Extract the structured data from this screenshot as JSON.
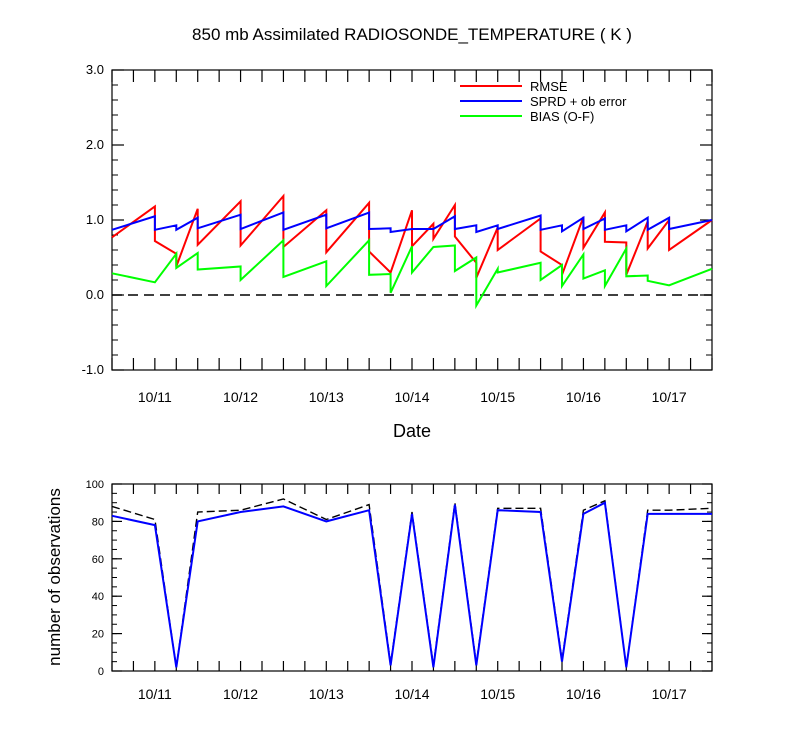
{
  "chart_data": [
    {
      "type": "line",
      "title": "850 mb Assimilated RADIOSONDE_TEMPERATURE ( K )",
      "xlabel": "Date",
      "ylabel": "",
      "ylim": [
        -1.0,
        3.0
      ],
      "yticks": [
        -1.0,
        0.0,
        1.0,
        2.0,
        3.0
      ],
      "ytick_labels": [
        "-1.0",
        "0.0",
        "1.0",
        "2.0",
        "3.0"
      ],
      "xlim": [
        0,
        14
      ],
      "xticks": [
        1,
        3,
        5,
        7,
        9,
        11,
        13
      ],
      "xtick_labels": [
        "10/11",
        "10/12",
        "10/13",
        "10/14",
        "10/15",
        "10/16",
        "10/17"
      ],
      "reference_line": {
        "y": 0.0,
        "style": "dashed"
      },
      "grid": false,
      "legend_position": "top-right",
      "series": [
        {
          "name": "RMSE",
          "color": "#ff0000",
          "x": [
            0,
            1,
            1,
            1.5,
            1.5,
            2,
            2,
            3,
            3,
            4,
            4,
            5,
            5,
            6,
            6,
            6.5,
            6.5,
            7,
            7,
            7.5,
            7.5,
            8,
            8,
            8.5,
            8.5,
            9,
            9,
            10,
            10,
            10.5,
            10.5,
            11,
            11,
            11.5,
            11.5,
            12,
            12,
            12.5,
            12.5,
            13,
            13,
            14
          ],
          "y": [
            0.77,
            1.18,
            0.72,
            0.55,
            0.38,
            1.15,
            0.67,
            1.25,
            0.66,
            1.32,
            0.64,
            1.13,
            0.57,
            1.23,
            0.58,
            0.3,
            0.3,
            1.13,
            0.65,
            0.95,
            0.75,
            1.2,
            0.78,
            0.43,
            0.23,
            0.9,
            0.6,
            1.02,
            0.58,
            0.4,
            0.27,
            1.04,
            0.63,
            1.1,
            0.71,
            0.7,
            0.27,
            0.98,
            0.62,
            1.0,
            0.6,
            1.0
          ]
        },
        {
          "name": "SPRD + ob error",
          "color": "#0000ff",
          "x": [
            0,
            1,
            1,
            1.5,
            1.5,
            2,
            2,
            3,
            3,
            4,
            4,
            5,
            5,
            6,
            6,
            6.5,
            6.5,
            7,
            7,
            7.5,
            7.5,
            8,
            8,
            8.5,
            8.5,
            9,
            9,
            10,
            10,
            10.5,
            10.5,
            11,
            11,
            11.5,
            11.5,
            12,
            12,
            12.5,
            12.5,
            13,
            13,
            14
          ],
          "y": [
            0.87,
            1.05,
            0.87,
            0.93,
            0.87,
            1.03,
            0.89,
            1.07,
            0.88,
            1.1,
            0.87,
            1.07,
            0.89,
            1.1,
            0.88,
            0.89,
            0.84,
            0.88,
            0.88,
            0.88,
            0.88,
            1.05,
            0.88,
            0.93,
            0.84,
            0.93,
            0.88,
            1.06,
            0.87,
            0.93,
            0.85,
            1.03,
            0.88,
            1.02,
            0.87,
            0.93,
            0.85,
            1.03,
            0.87,
            1.03,
            0.88,
            1.0
          ]
        },
        {
          "name": "BIAS (O-F)",
          "color": "#00ff00",
          "x": [
            0,
            1,
            1,
            1.5,
            1.5,
            2,
            2,
            3,
            3,
            4,
            4,
            5,
            5,
            6,
            6,
            6.5,
            6.5,
            7,
            7,
            7.5,
            7.5,
            8,
            8,
            8.5,
            8.5,
            9,
            9,
            10,
            10,
            10.5,
            10.5,
            11,
            11,
            11.5,
            11.5,
            12,
            12,
            12.5,
            12.5,
            13,
            13,
            14
          ],
          "y": [
            0.29,
            0.17,
            0.17,
            0.55,
            0.36,
            0.56,
            0.34,
            0.38,
            0.2,
            0.73,
            0.24,
            0.45,
            0.12,
            0.73,
            0.27,
            0.28,
            0.03,
            0.65,
            0.3,
            0.64,
            0.64,
            0.66,
            0.32,
            0.5,
            -0.14,
            0.35,
            0.3,
            0.43,
            0.2,
            0.4,
            0.12,
            0.54,
            0.22,
            0.33,
            0.12,
            0.62,
            0.25,
            0.26,
            0.19,
            0.13,
            0.13,
            0.35
          ]
        }
      ]
    },
    {
      "type": "line",
      "title": "",
      "xlabel": "",
      "ylabel": "number of observations",
      "ylim": [
        0,
        100
      ],
      "yticks": [
        0,
        20,
        40,
        60,
        80,
        100
      ],
      "ytick_labels": [
        "0",
        "20",
        "40",
        "60",
        "80",
        "100"
      ],
      "xlim": [
        0,
        14
      ],
      "xticks": [
        1,
        3,
        5,
        7,
        9,
        11,
        13
      ],
      "xtick_labels": [
        "10/11",
        "10/12",
        "10/13",
        "10/14",
        "10/15",
        "10/16",
        "10/17"
      ],
      "grid": false,
      "series": [
        {
          "color": "#000000",
          "style": "dashed",
          "x": [
            0,
            1,
            1.5,
            2,
            3,
            4,
            5,
            6,
            6.5,
            7,
            7.5,
            8,
            8.5,
            9,
            10,
            10.5,
            11,
            11.5,
            12,
            12.5,
            13,
            14
          ],
          "y": [
            88,
            81,
            2,
            85,
            86,
            92,
            81,
            89,
            4,
            85,
            3,
            90,
            4,
            87,
            87,
            6,
            86,
            91,
            2,
            86,
            86,
            87
          ]
        },
        {
          "color": "#0000ff",
          "style": "solid",
          "x": [
            0,
            1,
            1.5,
            2,
            3,
            4,
            5,
            6,
            6.5,
            7,
            7.5,
            8,
            8.5,
            9,
            10,
            10.5,
            11,
            11.5,
            12,
            12.5,
            13,
            14
          ],
          "y": [
            83,
            78,
            2,
            80,
            85,
            88,
            80,
            86,
            3,
            84,
            2,
            89,
            3,
            86,
            85,
            5,
            84,
            90,
            2,
            84,
            84,
            84
          ]
        }
      ]
    }
  ]
}
